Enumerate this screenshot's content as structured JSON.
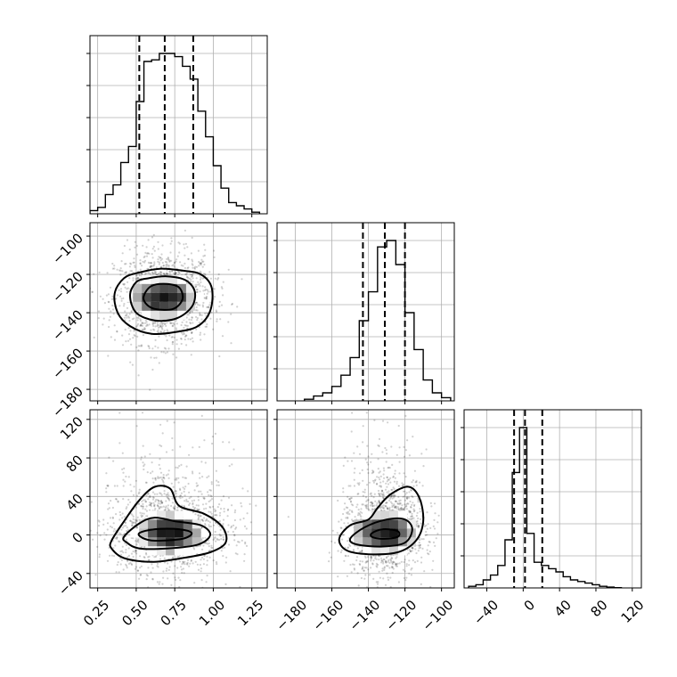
{
  "chart_data": {
    "type": "corner",
    "grid": true,
    "panels": [
      {
        "id": "p00",
        "type": "histogram",
        "xlim": [
          0.2,
          1.35
        ],
        "xticks": [
          0.25,
          0.5,
          0.75,
          1.0,
          1.25
        ],
        "bin_edges": [
          0.2,
          0.25,
          0.3,
          0.35,
          0.4,
          0.45,
          0.5,
          0.55,
          0.6,
          0.65,
          0.7,
          0.75,
          0.8,
          0.85,
          0.9,
          0.95,
          1.0,
          1.05,
          1.1,
          1.15,
          1.2,
          1.25,
          1.3
        ],
        "counts": [
          0.02,
          0.04,
          0.12,
          0.18,
          0.32,
          0.42,
          0.7,
          0.95,
          0.96,
          1.0,
          1.0,
          0.98,
          0.92,
          0.84,
          0.64,
          0.48,
          0.3,
          0.16,
          0.07,
          0.05,
          0.03,
          0.01
        ],
        "quantiles": [
          0.52,
          0.685,
          0.87
        ]
      },
      {
        "id": "p10",
        "type": "histogram2d",
        "xlim": [
          0.2,
          1.35
        ],
        "ylim": [
          -186,
          -93
        ],
        "xticks": [
          0.25,
          0.5,
          0.75,
          1.0,
          1.25
        ],
        "yticks": [
          -100,
          -120,
          -140,
          -160,
          -180
        ],
        "ytick_labels": [
          "−100",
          "−120",
          "−140",
          "−160",
          "−180"
        ],
        "center": [
          0.68,
          -132
        ],
        "spread": [
          0.16,
          12
        ],
        "levels": [
          [
            [
              0.36,
              -130
            ],
            [
              0.42,
              -122
            ],
            [
              0.52,
              -119
            ],
            [
              0.66,
              -117
            ],
            [
              0.8,
              -118
            ],
            [
              0.92,
              -120
            ],
            [
              0.99,
              -127
            ],
            [
              0.98,
              -139
            ],
            [
              0.9,
              -147
            ],
            [
              0.76,
              -150
            ],
            [
              0.6,
              -151
            ],
            [
              0.46,
              -147
            ],
            [
              0.38,
              -140
            ]
          ],
          [
            [
              0.46,
              -131
            ],
            [
              0.5,
              -124
            ],
            [
              0.58,
              -122
            ],
            [
              0.7,
              -121
            ],
            [
              0.82,
              -123
            ],
            [
              0.88,
              -129
            ],
            [
              0.86,
              -137
            ],
            [
              0.76,
              -143
            ],
            [
              0.62,
              -144
            ],
            [
              0.5,
              -140
            ]
          ],
          [
            [
              0.55,
              -131
            ],
            [
              0.6,
              -126
            ],
            [
              0.7,
              -125
            ],
            [
              0.78,
              -127
            ],
            [
              0.8,
              -133
            ],
            [
              0.74,
              -138
            ],
            [
              0.62,
              -138
            ],
            [
              0.56,
              -135
            ]
          ]
        ]
      },
      {
        "id": "p11",
        "type": "histogram",
        "xlim": [
          -190,
          -93
        ],
        "xticks": [
          -180,
          -160,
          -140,
          -120,
          -100
        ],
        "bin_edges": [
          -175,
          -170,
          -165,
          -160,
          -155,
          -150,
          -145,
          -140,
          -135,
          -130,
          -125,
          -120,
          -115,
          -110,
          -105,
          -100,
          -95
        ],
        "counts": [
          0.01,
          0.03,
          0.05,
          0.09,
          0.16,
          0.27,
          0.5,
          0.68,
          0.96,
          1.0,
          0.85,
          0.55,
          0.32,
          0.13,
          0.05,
          0.02
        ],
        "quantiles": [
          -143,
          -131,
          -120
        ]
      },
      {
        "id": "p20",
        "type": "histogram2d",
        "xlim": [
          0.2,
          1.35
        ],
        "ylim": [
          -55,
          130
        ],
        "xticks": [
          0.25,
          0.5,
          0.75,
          1.0,
          1.25
        ],
        "xtick_labels": [
          "0.25",
          "0.50",
          "0.75",
          "1.00",
          "1.25"
        ],
        "yticks": [
          120,
          80,
          40,
          0,
          -40
        ],
        "ytick_labels": [
          "120",
          "80",
          "40",
          "0",
          "−40"
        ],
        "center": [
          0.72,
          2
        ],
        "spread": [
          0.2,
          22
        ],
        "levels": [
          [
            [
              0.34,
              -6
            ],
            [
              0.42,
              14
            ],
            [
              0.52,
              36
            ],
            [
              0.62,
              50
            ],
            [
              0.72,
              48
            ],
            [
              0.78,
              30
            ],
            [
              0.94,
              22
            ],
            [
              1.06,
              8
            ],
            [
              1.08,
              -8
            ],
            [
              0.98,
              -18
            ],
            [
              0.8,
              -24
            ],
            [
              0.6,
              -28
            ],
            [
              0.42,
              -24
            ],
            [
              0.34,
              -14
            ]
          ],
          [
            [
              0.42,
              -2
            ],
            [
              0.52,
              12
            ],
            [
              0.62,
              18
            ],
            [
              0.76,
              14
            ],
            [
              0.92,
              10
            ],
            [
              0.98,
              0
            ],
            [
              0.9,
              -10
            ],
            [
              0.7,
              -14
            ],
            [
              0.52,
              -14
            ],
            [
              0.44,
              -8
            ]
          ],
          [
            [
              0.52,
              2
            ],
            [
              0.62,
              6
            ],
            [
              0.78,
              6
            ],
            [
              0.86,
              2
            ],
            [
              0.8,
              -4
            ],
            [
              0.62,
              -6
            ],
            [
              0.54,
              -3
            ]
          ]
        ]
      },
      {
        "id": "p21",
        "type": "histogram2d",
        "xlim": [
          -190,
          -93
        ],
        "ylim": [
          -55,
          130
        ],
        "xticks": [
          -180,
          -160,
          -140,
          -120,
          -100
        ],
        "xtick_labels": [
          "−180",
          "−160",
          "−140",
          "−120",
          "−100"
        ],
        "yticks": [
          120,
          80,
          40,
          0,
          -40
        ],
        "center": [
          -131,
          2
        ],
        "spread": [
          11,
          22
        ],
        "levels": [
          [
            [
              -156,
              -4
            ],
            [
              -150,
              10
            ],
            [
              -140,
              16
            ],
            [
              -135,
              28
            ],
            [
              -128,
              42
            ],
            [
              -118,
              50
            ],
            [
              -112,
              38
            ],
            [
              -110,
              14
            ],
            [
              -114,
              -6
            ],
            [
              -124,
              -18
            ],
            [
              -140,
              -20
            ],
            [
              -152,
              -16
            ]
          ],
          [
            [
              -150,
              -4
            ],
            [
              -142,
              8
            ],
            [
              -130,
              16
            ],
            [
              -120,
              16
            ],
            [
              -116,
              6
            ],
            [
              -120,
              -8
            ],
            [
              -132,
              -12
            ],
            [
              -146,
              -10
            ]
          ],
          [
            [
              -138,
              2
            ],
            [
              -132,
              6
            ],
            [
              -124,
              4
            ],
            [
              -124,
              -2
            ],
            [
              -132,
              -4
            ],
            [
              -138,
              -2
            ]
          ]
        ]
      },
      {
        "id": "p22",
        "type": "histogram",
        "xlim": [
          -65,
          130
        ],
        "xticks": [
          -40,
          0,
          40,
          80,
          120
        ],
        "xtick_labels": [
          "−40",
          "0",
          "40",
          "80",
          "120"
        ],
        "bin_edges": [
          -60,
          -52,
          -44,
          -36,
          -28,
          -20,
          -12,
          -4,
          4,
          12,
          20,
          28,
          36,
          44,
          52,
          60,
          68,
          76,
          84,
          92,
          100,
          108
        ],
        "counts": [
          0.01,
          0.02,
          0.05,
          0.08,
          0.14,
          0.3,
          0.72,
          1.0,
          0.34,
          0.16,
          0.14,
          0.12,
          0.1,
          0.07,
          0.05,
          0.04,
          0.03,
          0.02,
          0.01,
          0.005,
          0.002
        ],
        "quantiles": [
          -10,
          2,
          21
        ]
      }
    ]
  }
}
